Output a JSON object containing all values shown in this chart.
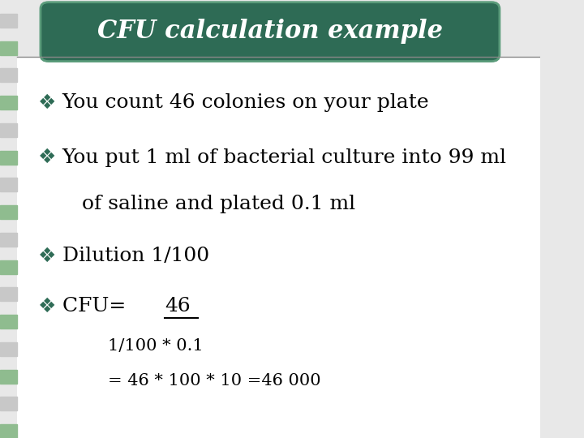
{
  "title": "CFU calculation example",
  "title_color": "#FFFFFF",
  "title_bg_color": "#2E6B55",
  "title_border_color": "#5A9B7A",
  "bg_color": "#E8E8E8",
  "content_bg_color": "#FFFFFF",
  "bullet_color": "#2E6B55",
  "text_color": "#000000",
  "formula_line1": "1/100 * 0.1",
  "formula_line2": "= 46 * 100 * 10 =46 000",
  "font_size_title": 22,
  "font_size_body": 18,
  "font_size_formula": 15,
  "stripe_color": "#C8C8C8",
  "stripe_accent": "#8FBC8F",
  "bullet_sym": "❖"
}
